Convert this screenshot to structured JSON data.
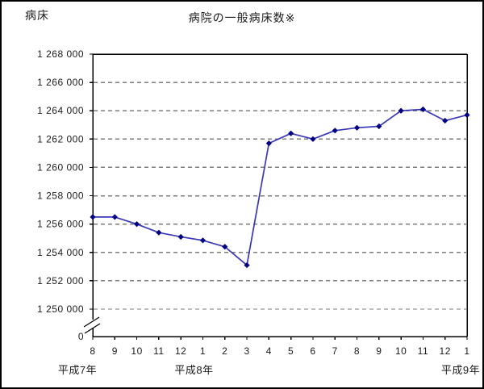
{
  "header": {
    "unit_label": "病床",
    "title": "病院の一般病床数※"
  },
  "chart_data": {
    "type": "line",
    "title": "病院の一般病床数※",
    "ylabel": "病床",
    "legend_position": "none",
    "grid": "horizontal-dashed",
    "axis_break": true,
    "categories": [
      "8",
      "9",
      "10",
      "11",
      "12",
      "1",
      "2",
      "3",
      "4",
      "5",
      "6",
      "7",
      "8",
      "9",
      "10",
      "11",
      "12",
      "1"
    ],
    "era_labels": [
      {
        "label": "平成7年",
        "index": 0
      },
      {
        "label": "平成8年",
        "index": 5
      },
      {
        "label": "平成9年",
        "index": 17
      }
    ],
    "series": [
      {
        "name": "病院の一般病床数",
        "values": [
          1256500,
          1256500,
          1256000,
          1255400,
          1255100,
          1254850,
          1254400,
          1253100,
          1261700,
          1262400,
          1262000,
          1262600,
          1262800,
          1262900,
          1264000,
          1264100,
          1263300,
          1263700
        ]
      }
    ],
    "ylim": [
      1250000,
      1268000
    ],
    "ytick_step": 2000,
    "ytick_labels": [
      "1 268 000",
      "1 266 000",
      "1 264 000",
      "1 262 000",
      "1 260 000",
      "1 258 000",
      "1 256 000",
      "1 254 000",
      "1 252 000",
      "1 250 000"
    ],
    "zero_label": "0",
    "colors": {
      "line": "#3838b8",
      "marker": "#000080",
      "grid": "#7d7d7d",
      "axis": "#000000",
      "text": "#1a1a1a"
    }
  }
}
